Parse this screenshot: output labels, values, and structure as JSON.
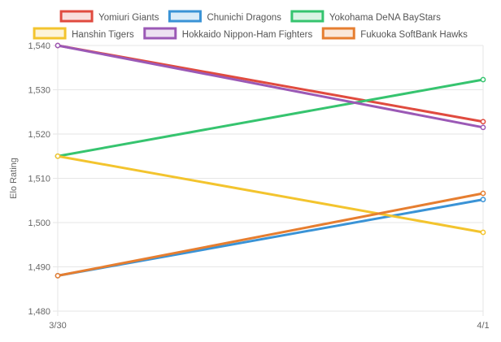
{
  "chart_data": {
    "type": "line",
    "x": [
      "3/30",
      "4/1"
    ],
    "xlabel": "",
    "ylabel": "Elo Rating",
    "ylim": [
      1480,
      1540
    ],
    "yticks": [
      1480,
      1490,
      1500,
      1510,
      1520,
      1530,
      1540
    ],
    "ytick_labels": [
      "1,480",
      "1,490",
      "1,500",
      "1,510",
      "1,520",
      "1,530",
      "1,540"
    ],
    "grid": true,
    "legend_position": "top",
    "series": [
      {
        "name": "Yomiuri Giants",
        "values": [
          1540,
          1522.8
        ],
        "color": "#e04b3f"
      },
      {
        "name": "Chunichi Dragons",
        "values": [
          1488,
          1505.2
        ],
        "color": "#3a93d6"
      },
      {
        "name": "Yokohama DeNA BayStars",
        "values": [
          1515,
          1532.3
        ],
        "color": "#36c46f"
      },
      {
        "name": "Hanshin Tigers",
        "values": [
          1515,
          1497.8
        ],
        "color": "#f3c42e"
      },
      {
        "name": "Hokkaido Nippon-Ham Fighters",
        "values": [
          1540,
          1521.5
        ],
        "color": "#9b59b6"
      },
      {
        "name": "Fukuoka SoftBank Hawks",
        "values": [
          1488,
          1506.6
        ],
        "color": "#e67e30"
      }
    ]
  }
}
